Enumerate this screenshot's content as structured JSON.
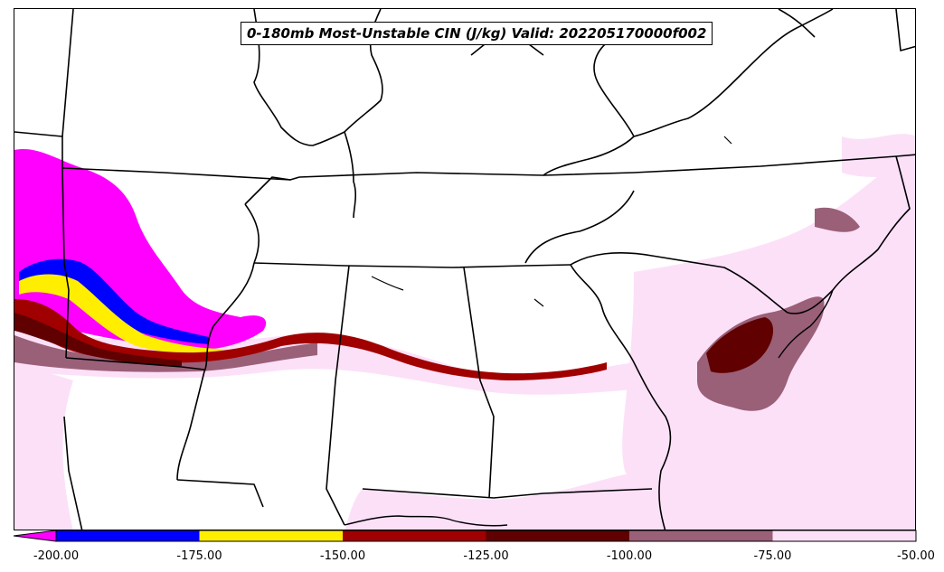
{
  "map": {
    "title": "0-180mb Most-Unstable CIN (J/kg) Valid: 202205170000f002"
  },
  "colorbar": {
    "colors": [
      "#ff00ff",
      "#0000ff",
      "#ffee00",
      "#a00000",
      "#600000",
      "#9a6078",
      "#fce0f8"
    ],
    "bins": [
      {
        "from": null,
        "to": -200.0,
        "color": "#ff00ff"
      },
      {
        "from": -200.0,
        "to": -175.0,
        "color": "#0000ff"
      },
      {
        "from": -175.0,
        "to": -150.0,
        "color": "#ffee00"
      },
      {
        "from": -150.0,
        "to": -125.0,
        "color": "#a00000"
      },
      {
        "from": -125.0,
        "to": -100.0,
        "color": "#600000"
      },
      {
        "from": -100.0,
        "to": -75.0,
        "color": "#9a6078"
      },
      {
        "from": -75.0,
        "to": -50.0,
        "color": "#fce0f8"
      }
    ],
    "ticks": [
      "-200.00",
      "-175.00",
      "-150.00",
      "-125.00",
      "-100.00",
      "-75.00",
      "-50.00"
    ],
    "extend": "min"
  }
}
